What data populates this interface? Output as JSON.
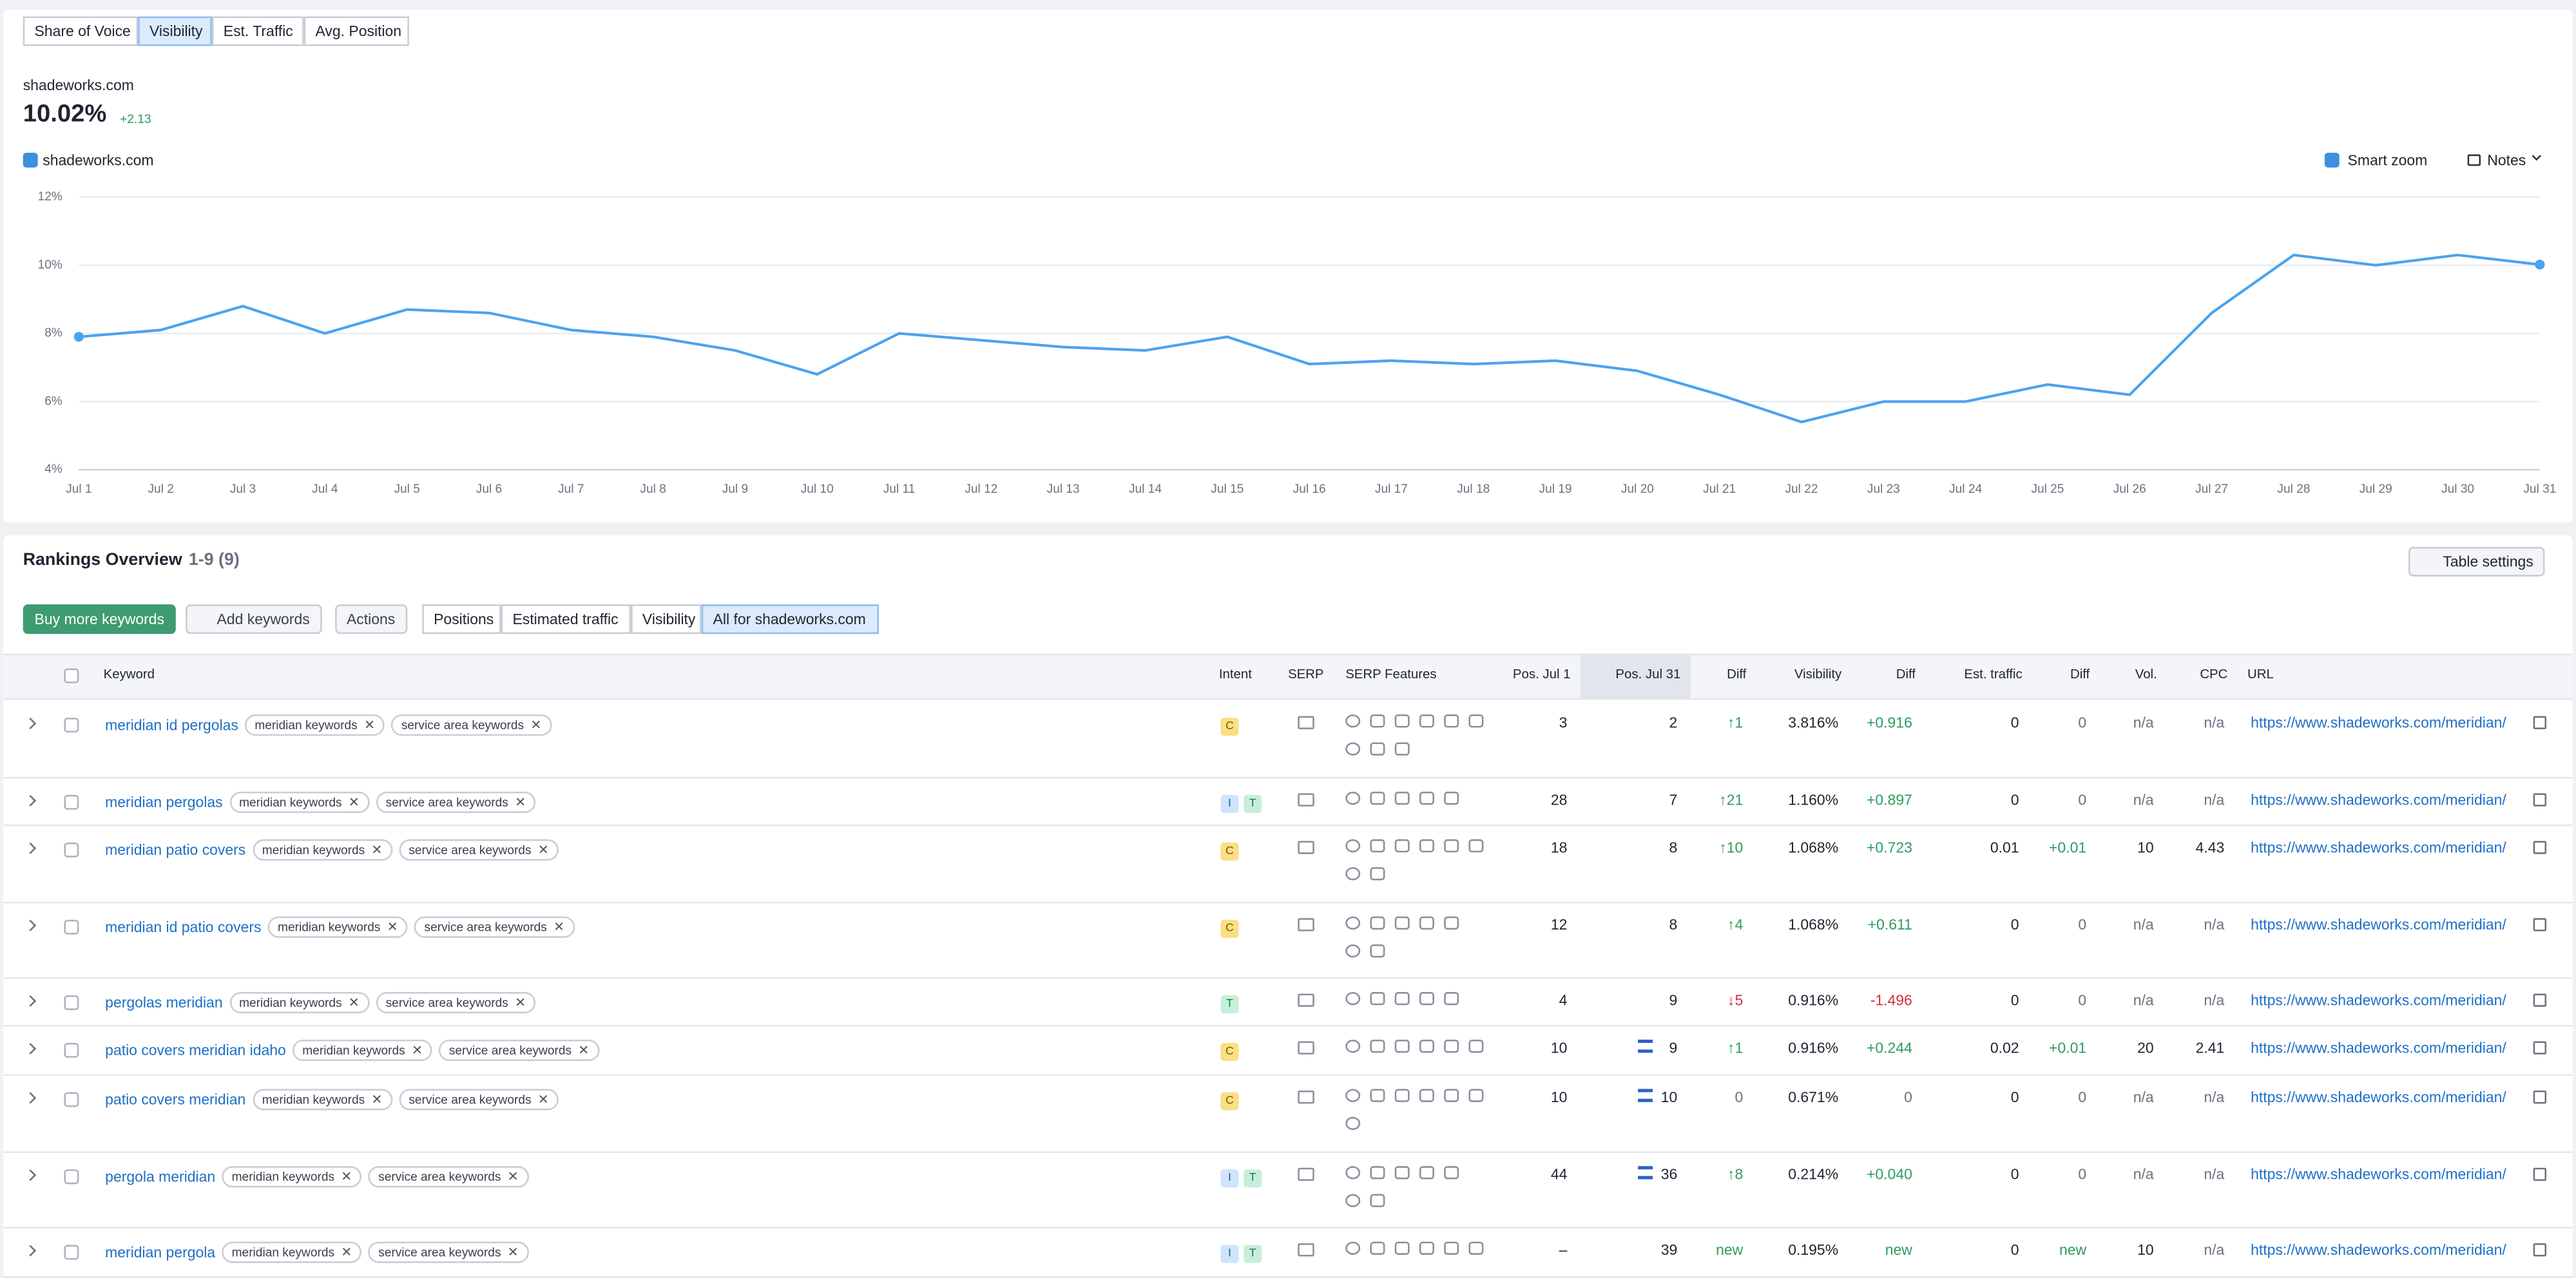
{
  "tabs": [
    {
      "label": "Share of Voice",
      "active": false
    },
    {
      "label": "Visibility",
      "active": true
    },
    {
      "label": "Est. Traffic",
      "active": false
    },
    {
      "label": "Avg. Position",
      "active": false
    }
  ],
  "summary": {
    "domain": "shadeworks.com",
    "value": "10.02%",
    "change": "+2.13"
  },
  "chart_data": {
    "type": "line",
    "categories": [
      "Jul 1",
      "Jul 2",
      "Jul 3",
      "Jul 4",
      "Jul 5",
      "Jul 6",
      "Jul 7",
      "Jul 8",
      "Jul 9",
      "Jul 10",
      "Jul 11",
      "Jul 12",
      "Jul 13",
      "Jul 14",
      "Jul 15",
      "Jul 16",
      "Jul 17",
      "Jul 18",
      "Jul 19",
      "Jul 20",
      "Jul 21",
      "Jul 22",
      "Jul 23",
      "Jul 24",
      "Jul 25",
      "Jul 26",
      "Jul 27",
      "Jul 28",
      "Jul 29",
      "Jul 30",
      "Jul 31"
    ],
    "series": [
      {
        "name": "shadeworks.com",
        "color": "#4aa3ee",
        "values": [
          7.9,
          8.1,
          8.8,
          8.0,
          8.7,
          8.6,
          8.1,
          7.9,
          7.5,
          6.8,
          8.0,
          7.8,
          7.6,
          7.5,
          7.9,
          7.1,
          7.2,
          7.1,
          7.2,
          6.9,
          6.2,
          5.4,
          6.0,
          6.0,
          6.5,
          6.2,
          8.6,
          10.3,
          10.0,
          10.3,
          10.02
        ]
      }
    ],
    "ylim": [
      4,
      12
    ],
    "yticks": [
      {
        "value": 4,
        "label": "4%"
      },
      {
        "value": 6,
        "label": "6%"
      },
      {
        "value": 8,
        "label": "8%"
      },
      {
        "value": 10,
        "label": "10%"
      },
      {
        "value": 12,
        "label": "12%"
      }
    ],
    "grid": true,
    "smart_zoom": "Smart zoom",
    "notes": "Notes"
  },
  "rankings": {
    "title": "Rankings Overview",
    "count": "1-9 (9)",
    "table_settings": "Table settings",
    "buy": "Buy more keywords",
    "add": "Add keywords",
    "actions": "Actions",
    "filters": [
      {
        "label": "Positions",
        "active": false
      },
      {
        "label": "Estimated traffic",
        "active": false
      },
      {
        "label": "Visibility",
        "active": false
      },
      {
        "label": "All for shadeworks.com",
        "active": true
      }
    ],
    "columns": [
      "Keyword",
      "Intent",
      "SERP",
      "SERP Features",
      "Pos. Jul 1",
      "Pos. Jul 31",
      "Diff",
      "Visibility",
      "Diff",
      "Est. traffic",
      "Diff",
      "Vol.",
      "CPC",
      "URL"
    ],
    "rows": [
      {
        "keyword": "meridian id pergolas",
        "tags": [
          "meridian keywords",
          "service area keywords"
        ],
        "intent": [
          "C"
        ],
        "pos_jul1": "3",
        "pos_jul31": "2",
        "diff": "↑1",
        "visibility": "3.816%",
        "visibility_diff": "+0.916",
        "traffic": "0",
        "traffic_diff": "0",
        "volume": "n/a",
        "cpc": "n/a",
        "url": "https://www.shadeworks.com/meridian/"
      },
      {
        "keyword": "meridian pergolas",
        "tags": [
          "meridian keywords",
          "service area keywords"
        ],
        "intent": [
          "I",
          "T"
        ],
        "pos_jul1": "28",
        "pos_jul31": "7",
        "diff": "↑21",
        "visibility": "1.160%",
        "visibility_diff": "+0.897",
        "traffic": "0",
        "traffic_diff": "0",
        "volume": "n/a",
        "cpc": "n/a",
        "url": "https://www.shadeworks.com/meridian/"
      },
      {
        "keyword": "meridian patio covers",
        "tags": [
          "meridian keywords",
          "service area keywords"
        ],
        "intent": [
          "C"
        ],
        "pos_jul1": "18",
        "pos_jul31": "8",
        "diff": "↑10",
        "visibility": "1.068%",
        "visibility_diff": "+0.723",
        "traffic": "0.01",
        "traffic_diff": "+0.01",
        "volume": "10",
        "cpc": "4.43",
        "url": "https://www.shadeworks.com/meridian/"
      },
      {
        "keyword": "meridian id patio covers",
        "tags": [
          "meridian keywords",
          "service area keywords"
        ],
        "intent": [
          "C"
        ],
        "pos_jul1": "12",
        "pos_jul31": "8",
        "diff": "↑4",
        "visibility": "1.068%",
        "visibility_diff": "+0.611",
        "traffic": "0",
        "traffic_diff": "0",
        "volume": "n/a",
        "cpc": "n/a",
        "url": "https://www.shadeworks.com/meridian/"
      },
      {
        "keyword": "pergolas meridian",
        "tags": [
          "meridian keywords",
          "service area keywords"
        ],
        "intent": [
          "T"
        ],
        "pos_jul1": "4",
        "pos_jul31": "9",
        "diff": "↓5",
        "visibility": "0.916%",
        "visibility_diff": "-1.496",
        "traffic": "0",
        "traffic_diff": "0",
        "volume": "n/a",
        "cpc": "n/a",
        "url": "https://www.shadeworks.com/meridian/"
      },
      {
        "keyword": "patio covers meridian idaho",
        "tags": [
          "meridian keywords",
          "service area keywords"
        ],
        "intent": [
          "C"
        ],
        "pos_jul1": "10",
        "pos_jul31": "9",
        "diff": "↑1",
        "visibility": "0.916%",
        "visibility_diff": "+0.244",
        "traffic": "0.02",
        "traffic_diff": "+0.01",
        "volume": "20",
        "cpc": "2.41",
        "url": "https://www.shadeworks.com/meridian/"
      },
      {
        "keyword": "patio covers meridian",
        "tags": [
          "meridian keywords",
          "service area keywords"
        ],
        "intent": [
          "C"
        ],
        "pos_jul1": "10",
        "pos_jul31": "10",
        "diff": "0",
        "visibility": "0.671%",
        "visibility_diff": "0",
        "traffic": "0",
        "traffic_diff": "0",
        "volume": "n/a",
        "cpc": "n/a",
        "url": "https://www.shadeworks.com/meridian/"
      },
      {
        "keyword": "pergola meridian",
        "tags": [
          "meridian keywords",
          "service area keywords"
        ],
        "intent": [
          "I",
          "T"
        ],
        "pos_jul1": "44",
        "pos_jul31": "36",
        "diff": "↑8",
        "visibility": "0.214%",
        "visibility_diff": "+0.040",
        "traffic": "0",
        "traffic_diff": "0",
        "volume": "n/a",
        "cpc": "n/a",
        "url": "https://www.shadeworks.com/meridian/"
      },
      {
        "keyword": "meridian pergola",
        "tags": [
          "meridian keywords",
          "service area keywords"
        ],
        "intent": [
          "I",
          "T"
        ],
        "pos_jul1": "–",
        "pos_jul31": "39",
        "diff": "new",
        "visibility": "0.195%",
        "visibility_diff": "new",
        "traffic": "0",
        "traffic_diff": "new",
        "volume": "10",
        "cpc": "n/a",
        "url": "https://www.shadeworks.com/meridian/"
      }
    ]
  }
}
